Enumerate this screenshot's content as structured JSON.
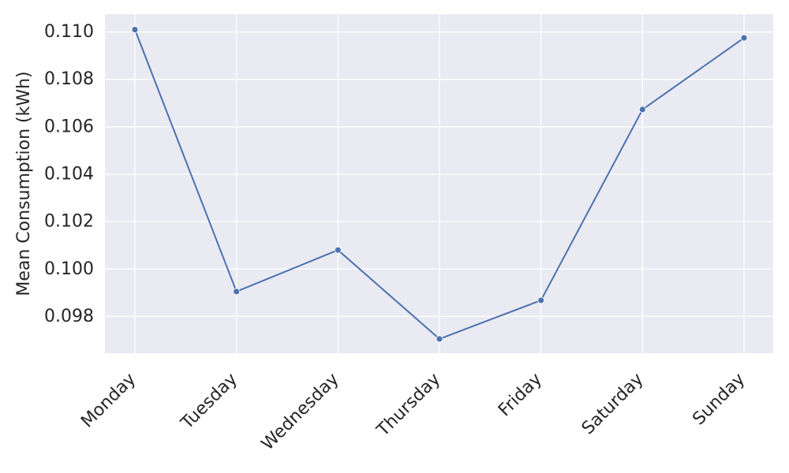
{
  "chart_data": {
    "type": "line",
    "title": "",
    "xlabel": "",
    "ylabel": "Mean Consumption (kWh)",
    "categories": [
      "Monday",
      "Tuesday",
      "Wednesday",
      "Thursday",
      "Friday",
      "Saturday",
      "Sunday"
    ],
    "series": [
      {
        "values": [
          0.1101,
          0.09905,
          0.1008,
          0.09705,
          0.09868,
          0.10673,
          0.10975
        ]
      }
    ],
    "ylim": [
      0.09645,
      0.11075
    ],
    "yticks": [
      0.098,
      0.1,
      0.102,
      0.104,
      0.106,
      0.108,
      0.11
    ],
    "ytick_labels": [
      "0.098",
      "0.100",
      "0.102",
      "0.104",
      "0.106",
      "0.108",
      "0.110"
    ],
    "grid": true,
    "colors": {
      "background": "#eaeaf2",
      "grid": "#ffffff",
      "line": "#4c72b0",
      "text": "#262626"
    }
  }
}
